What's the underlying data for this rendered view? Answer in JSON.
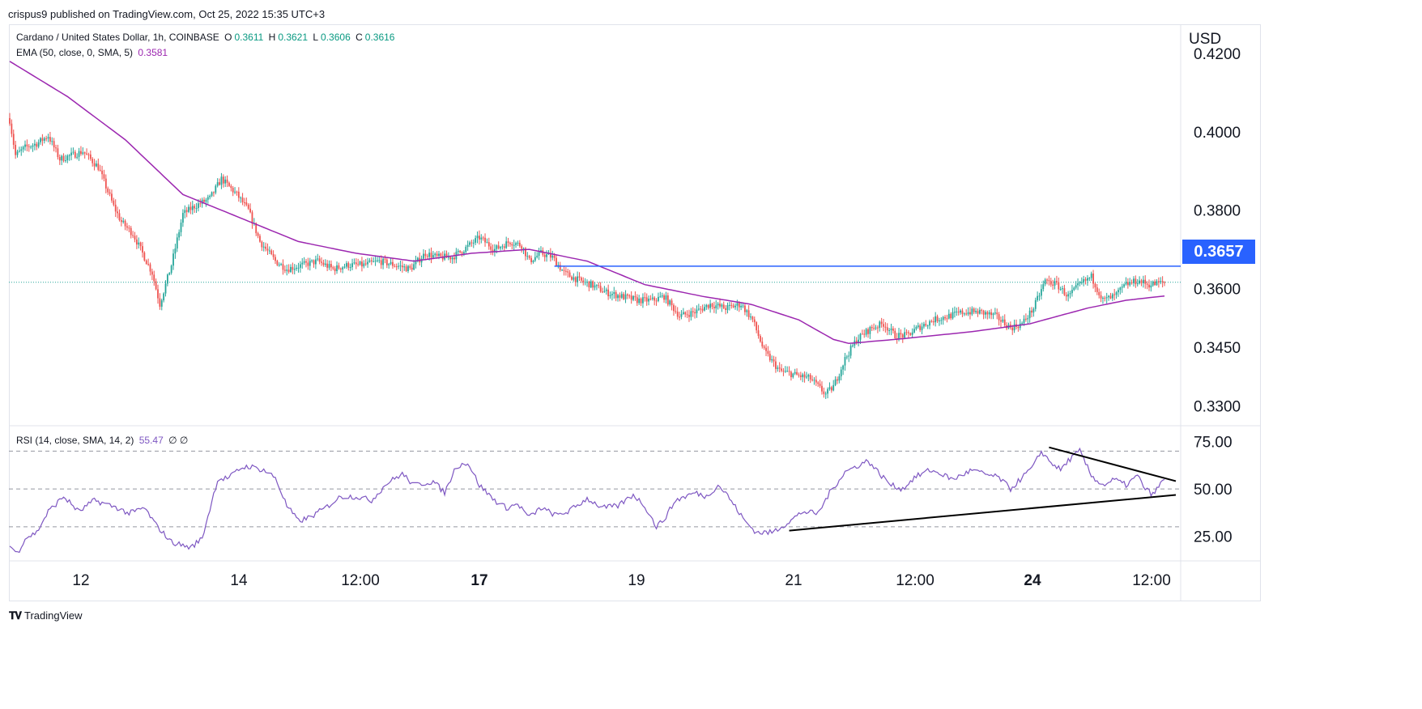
{
  "attribution": "crispus9 published on TradingView.com, Oct 25, 2022 15:35 UTC+3",
  "branding": "TradingView",
  "main_legend": {
    "symbol": "Cardano / United States Dollar, 1h, COINBASE",
    "o_label": "O",
    "o": "0.3611",
    "h_label": "H",
    "h": "0.3621",
    "l_label": "L",
    "l": "0.3606",
    "c_label": "C",
    "c": "0.3616",
    "ema_label": "EMA (50, close, 0, SMA, 5)",
    "ema_value": "0.3581"
  },
  "rsi_legend": {
    "label": "RSI (14, close, SMA, 14, 2)",
    "value": "55.47",
    "extra": "∅ ∅"
  },
  "currency": "USD",
  "price_tag": "0.3657",
  "colors": {
    "up": "#26a69a",
    "down": "#ef5350",
    "ema": "#9c27b0",
    "rsi": "#7e57c2",
    "resistance": "#2962ff",
    "trend": "#000000"
  },
  "chart_data": [
    {
      "type": "candlestick",
      "title": "Cardano / United States Dollar, 1h, COINBASE",
      "ylim": [
        0.3287,
        0.4225
      ],
      "y_ticks": [
        "0.4200",
        "0.4000",
        "0.3800",
        "0.3600",
        "0.3450",
        "0.3300"
      ],
      "y_tick_values": [
        0.42,
        0.4,
        0.38,
        0.36,
        0.345,
        0.33
      ],
      "x_ticks": [
        "12",
        "14",
        "12:00",
        "17",
        "19",
        "21",
        "12:00",
        "24",
        "12:00"
      ],
      "bold_x_ticks": [
        "17",
        "24"
      ],
      "series": [
        {
          "name": "ADA/USD",
          "anchors": [
            [
              0,
              0.403
            ],
            [
              3,
              0.394
            ],
            [
              8,
              0.396
            ],
            [
              14,
              0.397
            ],
            [
              20,
              0.399
            ],
            [
              26,
              0.393
            ],
            [
              32,
              0.394
            ],
            [
              38,
              0.395
            ],
            [
              46,
              0.391
            ],
            [
              54,
              0.381
            ],
            [
              58,
              0.377
            ],
            [
              64,
              0.374
            ],
            [
              70,
              0.368
            ],
            [
              74,
              0.364
            ],
            [
              78,
              0.356
            ],
            [
              84,
              0.366
            ],
            [
              90,
              0.379
            ],
            [
              96,
              0.381
            ],
            [
              104,
              0.383
            ],
            [
              110,
              0.388
            ],
            [
              118,
              0.384
            ],
            [
              124,
              0.38
            ],
            [
              130,
              0.372
            ],
            [
              138,
              0.367
            ],
            [
              144,
              0.365
            ],
            [
              152,
              0.366
            ],
            [
              160,
              0.367
            ],
            [
              168,
              0.365
            ],
            [
              176,
              0.366
            ],
            [
              184,
              0.366
            ],
            [
              192,
              0.367
            ],
            [
              200,
              0.366
            ],
            [
              208,
              0.365
            ],
            [
              216,
              0.369
            ],
            [
              222,
              0.368
            ],
            [
              230,
              0.368
            ],
            [
              236,
              0.37
            ],
            [
              244,
              0.373
            ],
            [
              252,
              0.37
            ],
            [
              260,
              0.372
            ],
            [
              266,
              0.371
            ],
            [
              270,
              0.367
            ],
            [
              276,
              0.369
            ],
            [
              282,
              0.368
            ],
            [
              288,
              0.364
            ],
            [
              296,
              0.362
            ],
            [
              302,
              0.361
            ],
            [
              310,
              0.359
            ],
            [
              318,
              0.358
            ],
            [
              326,
              0.357
            ],
            [
              334,
              0.357
            ],
            [
              340,
              0.358
            ],
            [
              348,
              0.353
            ],
            [
              356,
              0.354
            ],
            [
              364,
              0.356
            ],
            [
              372,
              0.355
            ],
            [
              380,
              0.356
            ],
            [
              386,
              0.352
            ],
            [
              392,
              0.344
            ],
            [
              400,
              0.339
            ],
            [
              408,
              0.338
            ],
            [
              416,
              0.337
            ],
            [
              424,
              0.333
            ],
            [
              428,
              0.335
            ],
            [
              434,
              0.342
            ],
            [
              440,
              0.347
            ],
            [
              448,
              0.35
            ],
            [
              454,
              0.351
            ],
            [
              460,
              0.348
            ],
            [
              466,
              0.348
            ],
            [
              472,
              0.35
            ],
            [
              480,
              0.352
            ],
            [
              488,
              0.353
            ],
            [
              496,
              0.354
            ],
            [
              504,
              0.354
            ],
            [
              512,
              0.353
            ],
            [
              520,
              0.35
            ],
            [
              526,
              0.351
            ],
            [
              532,
              0.355
            ],
            [
              538,
              0.362
            ],
            [
              544,
              0.361
            ],
            [
              550,
              0.358
            ],
            [
              556,
              0.361
            ],
            [
              562,
              0.363
            ],
            [
              568,
              0.357
            ],
            [
              574,
              0.358
            ],
            [
              580,
              0.361
            ],
            [
              586,
              0.362
            ],
            [
              592,
              0.361
            ],
            [
              600,
              0.3616
            ]
          ]
        },
        {
          "name": "EMA (50, close, 0, SMA, 5)",
          "anchors": [
            [
              0,
              0.418
            ],
            [
              30,
              0.409
            ],
            [
              60,
              0.398
            ],
            [
              90,
              0.384
            ],
            [
              120,
              0.378
            ],
            [
              150,
              0.372
            ],
            [
              180,
              0.369
            ],
            [
              210,
              0.367
            ],
            [
              240,
              0.369
            ],
            [
              270,
              0.37
            ],
            [
              300,
              0.367
            ],
            [
              330,
              0.361
            ],
            [
              360,
              0.358
            ],
            [
              385,
              0.356
            ],
            [
              410,
              0.352
            ],
            [
              428,
              0.347
            ],
            [
              436,
              0.346
            ],
            [
              460,
              0.347
            ],
            [
              500,
              0.349
            ],
            [
              530,
              0.351
            ],
            [
              560,
              0.355
            ],
            [
              580,
              0.357
            ],
            [
              600,
              0.3581
            ]
          ]
        }
      ],
      "resistance": {
        "value": 0.3657,
        "from_bar": 283,
        "to_bar": 600
      },
      "last_price": 0.3616
    },
    {
      "type": "line",
      "title": "RSI (14, close, SMA, 14, 2)",
      "ylim": [
        12,
        83
      ],
      "y_ticks": [
        "75.00",
        "50.00",
        "25.00"
      ],
      "y_tick_values": [
        75,
        50,
        25
      ],
      "levels": [
        70,
        50,
        30
      ],
      "series": [
        {
          "name": "RSI (14, close, SMA, 14, 2)",
          "anchors": [
            [
              0,
              20
            ],
            [
              4,
              16
            ],
            [
              8,
              24
            ],
            [
              14,
              27
            ],
            [
              20,
              38
            ],
            [
              28,
              46
            ],
            [
              36,
              38
            ],
            [
              44,
              44
            ],
            [
              56,
              40
            ],
            [
              62,
              37
            ],
            [
              70,
              40
            ],
            [
              76,
              31
            ],
            [
              84,
              22
            ],
            [
              94,
              19
            ],
            [
              100,
              24
            ],
            [
              108,
              55
            ],
            [
              114,
              56
            ],
            [
              120,
              61
            ],
            [
              124,
              62
            ],
            [
              132,
              60
            ],
            [
              138,
              56
            ],
            [
              144,
              41
            ],
            [
              150,
              33
            ],
            [
              156,
              35
            ],
            [
              164,
              40
            ],
            [
              172,
              46
            ],
            [
              180,
              46
            ],
            [
              188,
              44
            ],
            [
              196,
              53
            ],
            [
              204,
              58
            ],
            [
              210,
              52
            ],
            [
              220,
              54
            ],
            [
              226,
              48
            ],
            [
              232,
              62
            ],
            [
              238,
              64
            ],
            [
              244,
              52
            ],
            [
              252,
              44
            ],
            [
              258,
              40
            ],
            [
              264,
              42
            ],
            [
              270,
              35
            ],
            [
              276,
              40
            ],
            [
              284,
              36
            ],
            [
              290,
              38
            ],
            [
              296,
              42
            ],
            [
              300,
              45
            ],
            [
              308,
              40
            ],
            [
              316,
              41
            ],
            [
              324,
              47
            ],
            [
              330,
              41
            ],
            [
              336,
              30
            ],
            [
              340,
              34
            ],
            [
              346,
              44
            ],
            [
              356,
              48
            ],
            [
              362,
              46
            ],
            [
              368,
              52
            ],
            [
              372,
              48
            ],
            [
              376,
              42
            ],
            [
              382,
              33
            ],
            [
              388,
              27
            ],
            [
              396,
              27
            ],
            [
              404,
              32
            ],
            [
              412,
              38
            ],
            [
              420,
              37
            ],
            [
              426,
              48
            ],
            [
              434,
              59
            ],
            [
              440,
              62
            ],
            [
              446,
              65
            ],
            [
              452,
              58
            ],
            [
              458,
              52
            ],
            [
              464,
              50
            ],
            [
              470,
              56
            ],
            [
              478,
              60
            ],
            [
              484,
              58
            ],
            [
              490,
              55
            ],
            [
              500,
              60
            ],
            [
              506,
              58
            ],
            [
              514,
              56
            ],
            [
              520,
              50
            ],
            [
              526,
              56
            ],
            [
              532,
              62
            ],
            [
              536,
              70
            ],
            [
              540,
              65
            ],
            [
              546,
              60
            ],
            [
              550,
              65
            ],
            [
              556,
              70
            ],
            [
              562,
              57
            ],
            [
              568,
              52
            ],
            [
              574,
              55
            ],
            [
              580,
              52
            ],
            [
              586,
              57
            ],
            [
              590,
              50
            ],
            [
              594,
              47
            ],
            [
              600,
              55.47
            ]
          ]
        }
      ],
      "trendlines": [
        {
          "from": [
            405,
            28
          ],
          "to": [
            600,
            46
          ]
        },
        {
          "from": [
            540,
            72
          ],
          "to": [
            600,
            55
          ]
        }
      ]
    }
  ]
}
